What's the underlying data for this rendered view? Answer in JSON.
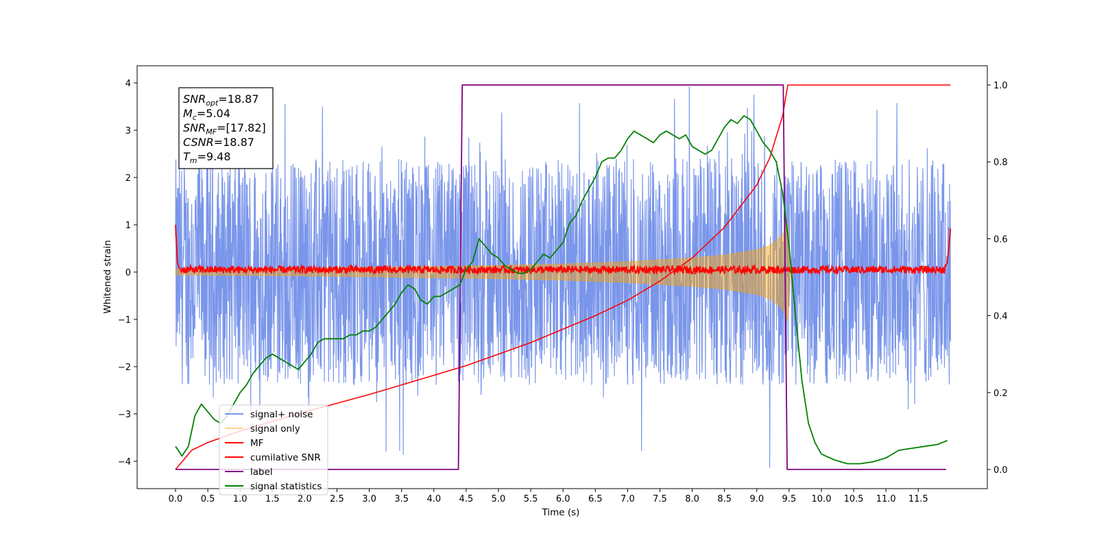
{
  "chart_data": {
    "type": "line",
    "xlabel": "Time (s)",
    "ylabel_left": "Whitened strain",
    "ylabel_right": "",
    "xlim": [
      -0.6,
      12.5
    ],
    "ylim_left": [
      -4.6,
      4.35
    ],
    "ylim_right": [
      -0.045,
      1.035
    ],
    "x_ticks": [
      "0.0",
      "0.5",
      "1.0",
      "1.5",
      "2.0",
      "2.5",
      "3.0",
      "3.5",
      "4.0",
      "4.5",
      "5.0",
      "5.5",
      "6.0",
      "6.5",
      "7.0",
      "7.5",
      "8.0",
      "8.5",
      "9.0",
      "9.5",
      "10.0",
      "10.5",
      "11.0",
      "11.5"
    ],
    "y_ticks_left": [
      "4",
      "3",
      "2",
      "1",
      "0",
      "−1",
      "−2",
      "−3",
      "−4"
    ],
    "y_ticks_right": [
      "1.0",
      "0.8",
      "0.6",
      "0.4",
      "0.2",
      "0.0"
    ],
    "grid": false,
    "legend_position": "lower-left",
    "annotation": {
      "snr_opt_label": "SNR",
      "snr_opt_sub": "opt",
      "snr_opt_value": "=18.87",
      "mc_label": "M",
      "mc_sub": "c",
      "mc_value": "=5.04",
      "snr_mf_label": "SNR",
      "snr_mf_sub": "MF",
      "snr_mf_value": "=[17.82]",
      "csnr_label": "CSNR",
      "csnr_value": "=18.87",
      "tm_label": "T",
      "tm_sub": "m",
      "tm_value": "=9.48"
    },
    "series": [
      {
        "name": "signal+ noise",
        "color": "#4169e1",
        "axis": "left",
        "description_envelope": {
          "x": [
            0,
            12
          ],
          "typical_range": [
            -2.4,
            2.4
          ],
          "extreme_range": [
            -4.15,
            3.95
          ]
        }
      },
      {
        "name": "signal only",
        "color": "#ffa500",
        "axis": "left",
        "chirp_envelope": {
          "x": [
            0,
            1,
            2,
            3,
            4,
            5,
            6,
            7,
            7.5,
            8,
            8.5,
            9,
            9.2,
            9.4,
            9.48
          ],
          "amplitude": [
            0.06,
            0.07,
            0.08,
            0.1,
            0.12,
            0.14,
            0.17,
            0.22,
            0.26,
            0.3,
            0.36,
            0.47,
            0.56,
            0.78,
            1.05
          ]
        }
      },
      {
        "name": "MF",
        "color": "#ff0000",
        "axis": "left",
        "x": [
          0,
          0.03,
          0.06,
          0.1,
          6.0,
          11.9,
          11.95,
          12.0
        ],
        "y": [
          1.0,
          0.2,
          0.08,
          0.05,
          0.05,
          0.05,
          0.2,
          0.92
        ]
      },
      {
        "name": "cumilative SNR",
        "color": "#ff0000",
        "axis": "right",
        "x": [
          0,
          0.25,
          0.5,
          1.0,
          1.5,
          2.0,
          2.5,
          3.0,
          3.5,
          4.0,
          4.5,
          5.0,
          5.5,
          6.0,
          6.5,
          7.0,
          7.5,
          8.0,
          8.5,
          9.0,
          9.2,
          9.4,
          9.48,
          12.0
        ],
        "y": [
          0.0,
          0.05,
          0.07,
          0.1,
          0.125,
          0.15,
          0.172,
          0.195,
          0.22,
          0.245,
          0.27,
          0.3,
          0.33,
          0.365,
          0.4,
          0.44,
          0.49,
          0.55,
          0.63,
          0.74,
          0.81,
          0.92,
          1.0,
          1.0
        ]
      },
      {
        "name": "label",
        "color": "#800080",
        "axis": "right",
        "x": [
          0,
          4.38,
          4.44,
          9.41,
          9.47,
          11.93
        ],
        "y": [
          0,
          0,
          1,
          1,
          0,
          0
        ]
      },
      {
        "name": "signal statistics",
        "color": "#008000",
        "axis": "right",
        "x": [
          0,
          0.1,
          0.2,
          0.3,
          0.4,
          0.5,
          0.6,
          0.7,
          0.8,
          0.9,
          1.0,
          1.1,
          1.2,
          1.3,
          1.4,
          1.5,
          1.6,
          1.7,
          1.8,
          1.9,
          2.0,
          2.1,
          2.2,
          2.3,
          2.4,
          2.5,
          2.6,
          2.7,
          2.8,
          2.9,
          3.0,
          3.1,
          3.2,
          3.3,
          3.4,
          3.5,
          3.6,
          3.7,
          3.8,
          3.9,
          4.0,
          4.1,
          4.2,
          4.3,
          4.4,
          4.5,
          4.6,
          4.7,
          4.8,
          4.9,
          5.0,
          5.1,
          5.2,
          5.3,
          5.4,
          5.5,
          5.6,
          5.7,
          5.8,
          5.9,
          6.0,
          6.1,
          6.2,
          6.3,
          6.4,
          6.5,
          6.6,
          6.7,
          6.8,
          6.9,
          7.0,
          7.1,
          7.2,
          7.3,
          7.4,
          7.5,
          7.6,
          7.7,
          7.8,
          7.9,
          8.0,
          8.1,
          8.2,
          8.3,
          8.4,
          8.5,
          8.6,
          8.7,
          8.8,
          8.9,
          9.0,
          9.1,
          9.2,
          9.3,
          9.4,
          9.5,
          9.6,
          9.7,
          9.8,
          9.9,
          10.0,
          10.2,
          10.4,
          10.6,
          10.8,
          11.0,
          11.1,
          11.2,
          11.4,
          11.6,
          11.8,
          11.9,
          11.95
        ],
        "y": [
          0.06,
          0.035,
          0.06,
          0.14,
          0.17,
          0.15,
          0.13,
          0.12,
          0.14,
          0.17,
          0.2,
          0.22,
          0.25,
          0.27,
          0.29,
          0.3,
          0.29,
          0.28,
          0.27,
          0.26,
          0.28,
          0.3,
          0.33,
          0.34,
          0.34,
          0.34,
          0.34,
          0.35,
          0.35,
          0.36,
          0.36,
          0.37,
          0.39,
          0.41,
          0.43,
          0.46,
          0.48,
          0.47,
          0.44,
          0.43,
          0.45,
          0.45,
          0.46,
          0.47,
          0.48,
          0.52,
          0.54,
          0.6,
          0.58,
          0.56,
          0.55,
          0.53,
          0.52,
          0.51,
          0.51,
          0.52,
          0.54,
          0.56,
          0.55,
          0.57,
          0.59,
          0.64,
          0.66,
          0.7,
          0.73,
          0.76,
          0.8,
          0.81,
          0.81,
          0.83,
          0.86,
          0.88,
          0.87,
          0.86,
          0.85,
          0.87,
          0.88,
          0.87,
          0.86,
          0.87,
          0.84,
          0.83,
          0.82,
          0.83,
          0.86,
          0.89,
          0.91,
          0.9,
          0.92,
          0.91,
          0.88,
          0.85,
          0.83,
          0.8,
          0.72,
          0.58,
          0.4,
          0.23,
          0.12,
          0.07,
          0.04,
          0.025,
          0.015,
          0.015,
          0.02,
          0.03,
          0.04,
          0.05,
          0.055,
          0.06,
          0.065,
          0.072,
          0.075
        ]
      }
    ]
  }
}
